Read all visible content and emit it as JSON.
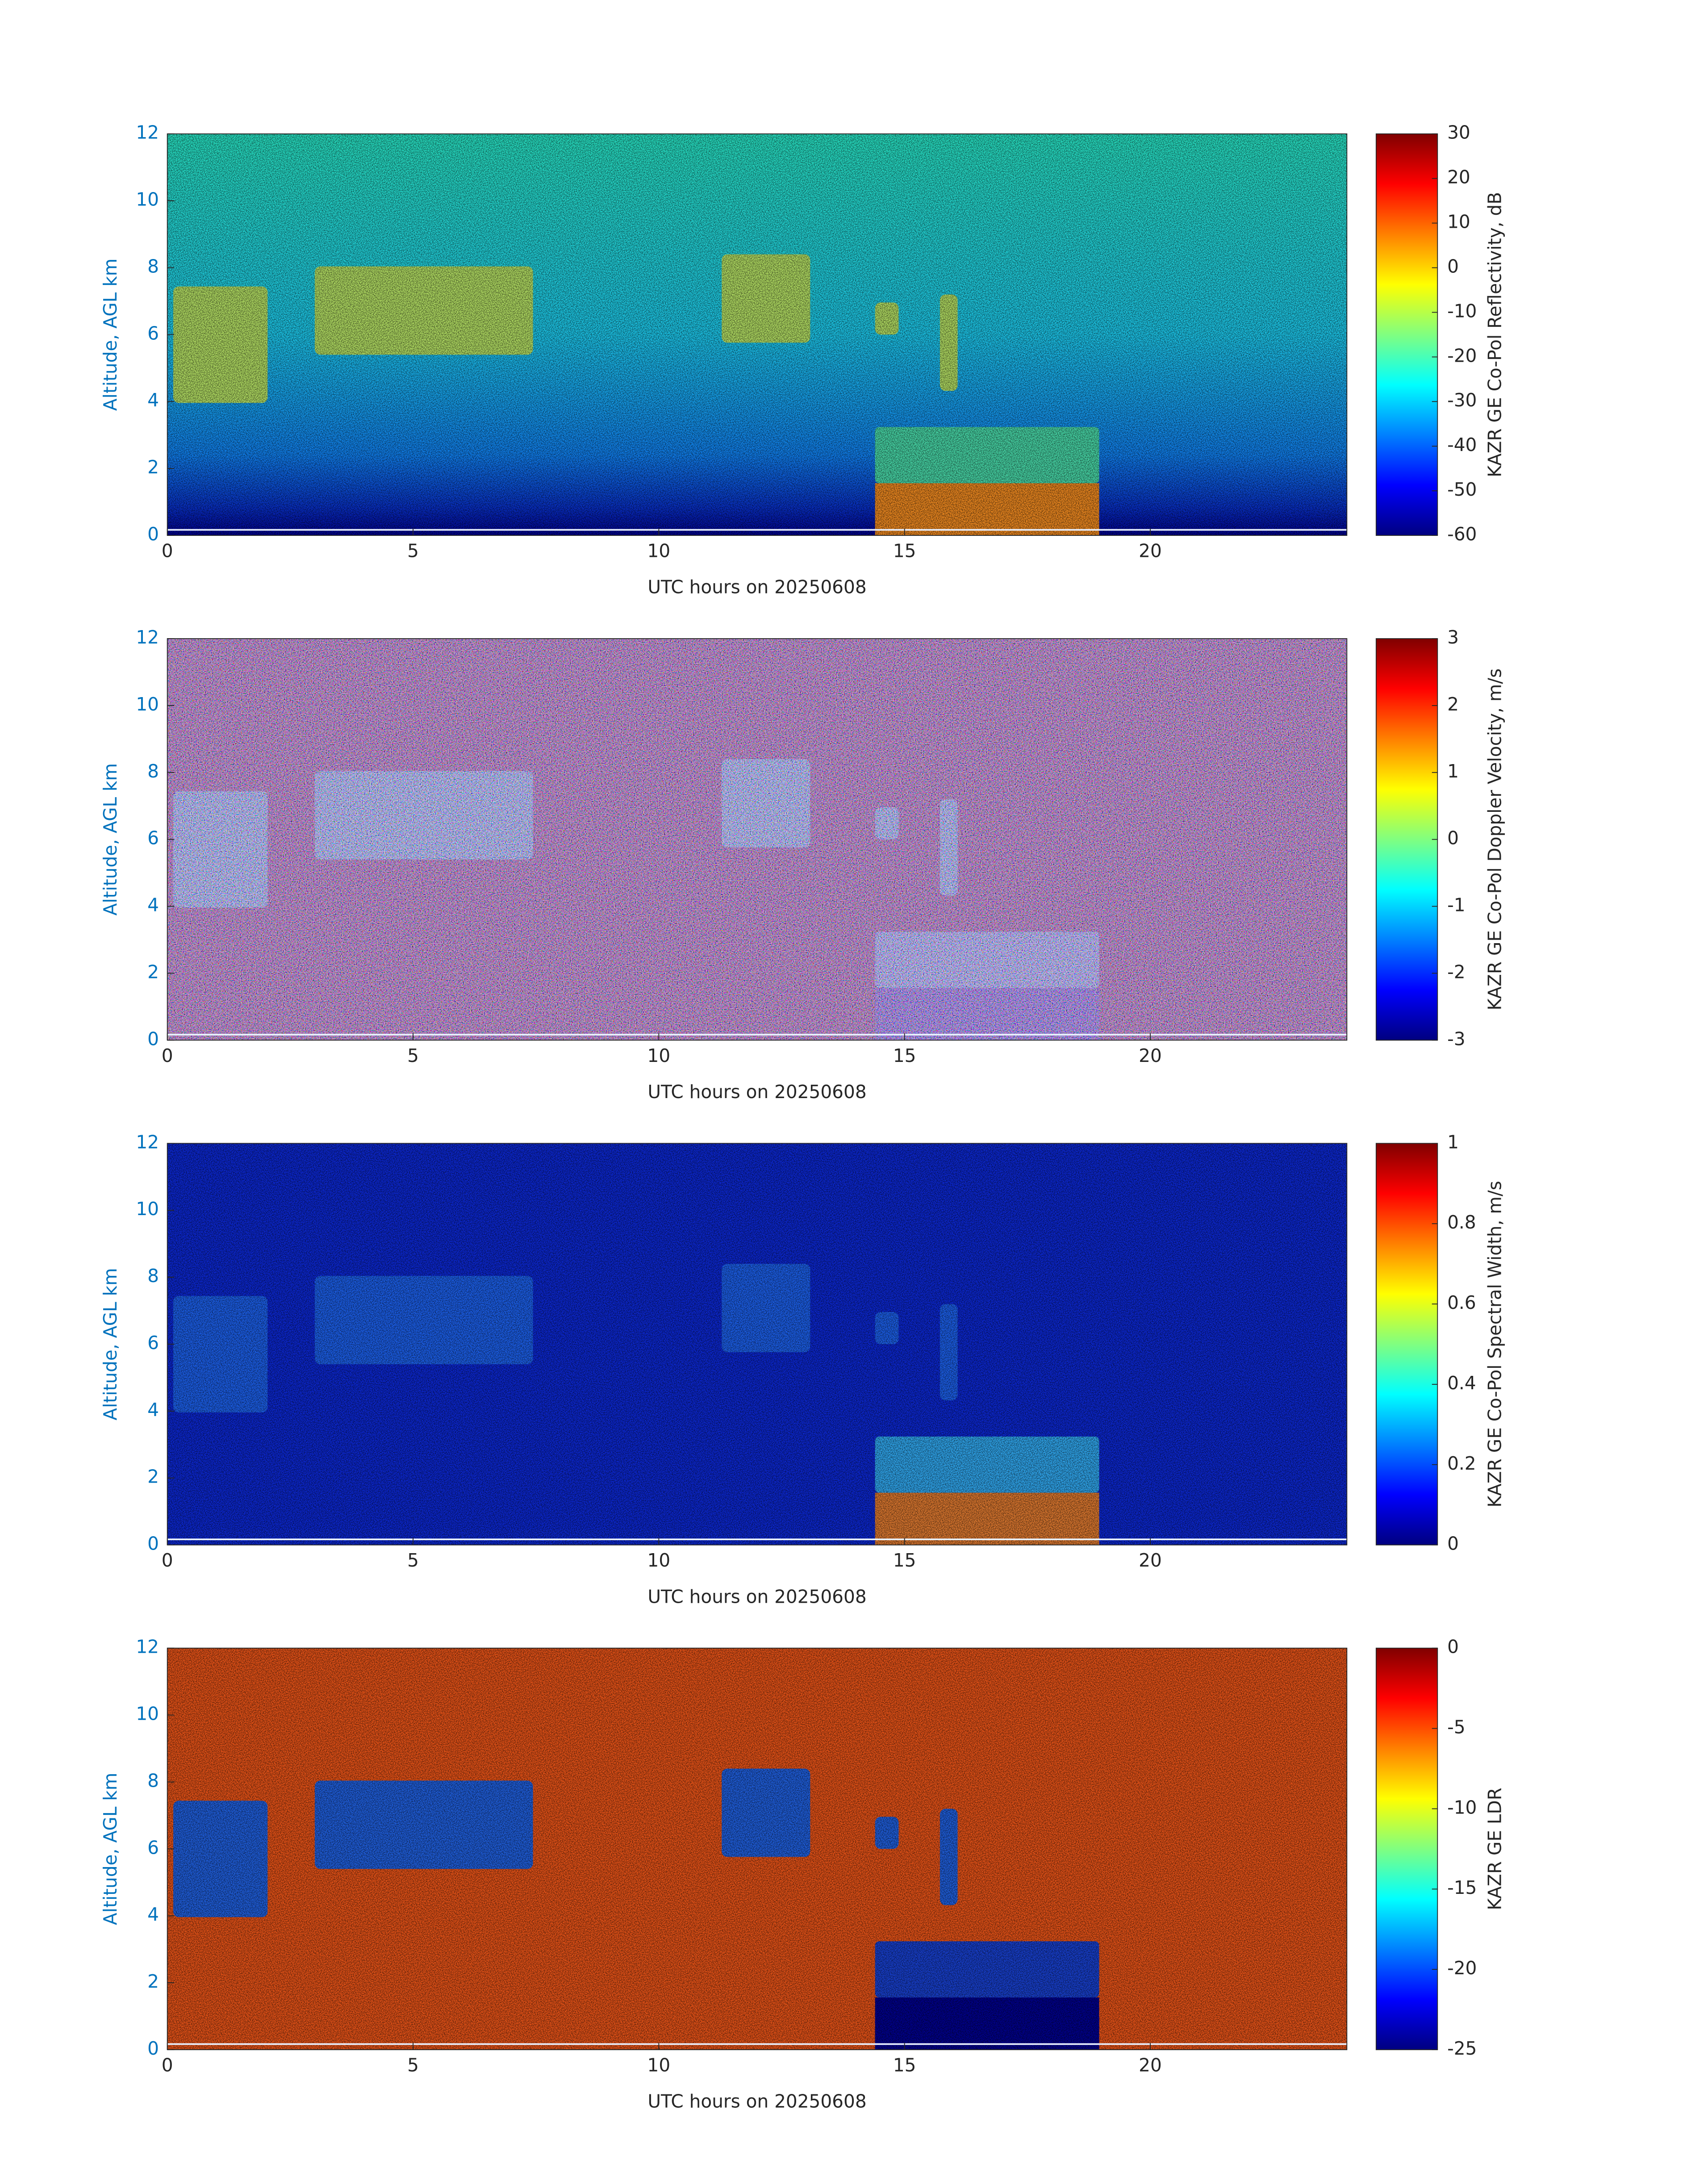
{
  "chart_data": [
    {
      "type": "heatmap",
      "xlabel": "UTC hours on 20250608",
      "ylabel": "Altitude, AGL km",
      "xlim": [
        0,
        24
      ],
      "ylim": [
        0,
        12
      ],
      "xticks": [
        0,
        5,
        10,
        15,
        20
      ],
      "yticks": [
        0,
        2,
        4,
        6,
        8,
        10,
        12
      ],
      "colormap": "jet",
      "colorbar": {
        "label": "KAZR GE Co-Pol Reflectivity, dB",
        "lim": [
          -60,
          30
        ],
        "ticks": [
          -60,
          -50,
          -40,
          -30,
          -20,
          -10,
          0,
          10,
          20,
          30
        ]
      }
    },
    {
      "type": "heatmap",
      "xlabel": "UTC hours on 20250608",
      "ylabel": "Altitude, AGL km",
      "xlim": [
        0,
        24
      ],
      "ylim": [
        0,
        12
      ],
      "xticks": [
        0,
        5,
        10,
        15,
        20
      ],
      "yticks": [
        0,
        2,
        4,
        6,
        8,
        10,
        12
      ],
      "colormap": "jet",
      "colorbar": {
        "label": "KAZR GE Co-Pol Doppler Velocity, m/s",
        "lim": [
          -3,
          3
        ],
        "ticks": [
          -3,
          -2,
          -1,
          0,
          1,
          2,
          3
        ]
      }
    },
    {
      "type": "heatmap",
      "xlabel": "UTC hours on 20250608",
      "ylabel": "Altitude, AGL km",
      "xlim": [
        0,
        24
      ],
      "ylim": [
        0,
        12
      ],
      "xticks": [
        0,
        5,
        10,
        15,
        20
      ],
      "yticks": [
        0,
        2,
        4,
        6,
        8,
        10,
        12
      ],
      "colormap": "jet",
      "colorbar": {
        "label": "KAZR GE Co-Pol Spectral Width, m/s",
        "lim": [
          0,
          1
        ],
        "ticks": [
          0,
          0.2,
          0.4,
          0.6,
          0.8,
          1
        ]
      }
    },
    {
      "type": "heatmap",
      "xlabel": "UTC hours on 20250608",
      "ylabel": "Altitude, AGL km",
      "xlim": [
        0,
        24
      ],
      "ylim": [
        0,
        12
      ],
      "xticks": [
        0,
        5,
        10,
        15,
        20
      ],
      "yticks": [
        0,
        2,
        4,
        6,
        8,
        10,
        12
      ],
      "colormap": "jet",
      "colorbar": {
        "label": "KAZR GE LDR",
        "lim": [
          -25,
          0
        ],
        "ticks": [
          -25,
          -20,
          -15,
          -10,
          -5,
          0
        ]
      }
    }
  ]
}
